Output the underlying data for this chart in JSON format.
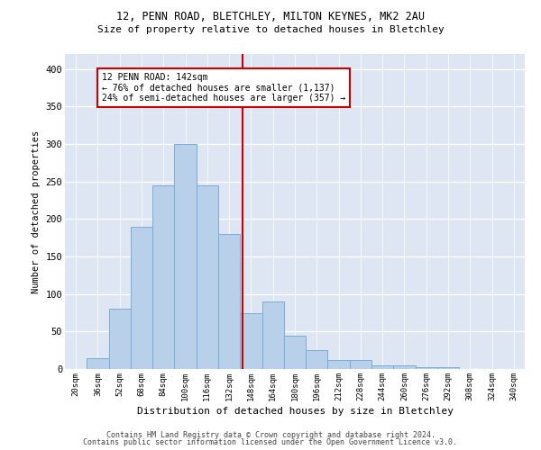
{
  "title1": "12, PENN ROAD, BLETCHLEY, MILTON KEYNES, MK2 2AU",
  "title2": "Size of property relative to detached houses in Bletchley",
  "xlabel": "Distribution of detached houses by size in Bletchley",
  "ylabel": "Number of detached properties",
  "bins": [
    "20sqm",
    "36sqm",
    "52sqm",
    "68sqm",
    "84sqm",
    "100sqm",
    "116sqm",
    "132sqm",
    "148sqm",
    "164sqm",
    "180sqm",
    "196sqm",
    "212sqm",
    "228sqm",
    "244sqm",
    "260sqm",
    "276sqm",
    "292sqm",
    "308sqm",
    "324sqm",
    "340sqm"
  ],
  "values": [
    0,
    15,
    80,
    190,
    245,
    300,
    245,
    180,
    75,
    90,
    45,
    25,
    12,
    12,
    5,
    5,
    3,
    2,
    0,
    0,
    0
  ],
  "bar_color": "#b8d0ea",
  "bar_edge_color": "#7aadd4",
  "vline_color": "#cc0000",
  "annotation_text": "12 PENN ROAD: 142sqm\n← 76% of detached houses are smaller (1,137)\n24% of semi-detached houses are larger (357) →",
  "annotation_box_color": "#cc0000",
  "bg_color": "#dde6f2",
  "grid_color": "#ffffff",
  "footer1": "Contains HM Land Registry data © Crown copyright and database right 2024.",
  "footer2": "Contains public sector information licensed under the Open Government Licence v3.0.",
  "ylim": [
    0,
    420
  ],
  "yticks": [
    0,
    50,
    100,
    150,
    200,
    250,
    300,
    350,
    400
  ],
  "vline_bin_index": 7.625
}
